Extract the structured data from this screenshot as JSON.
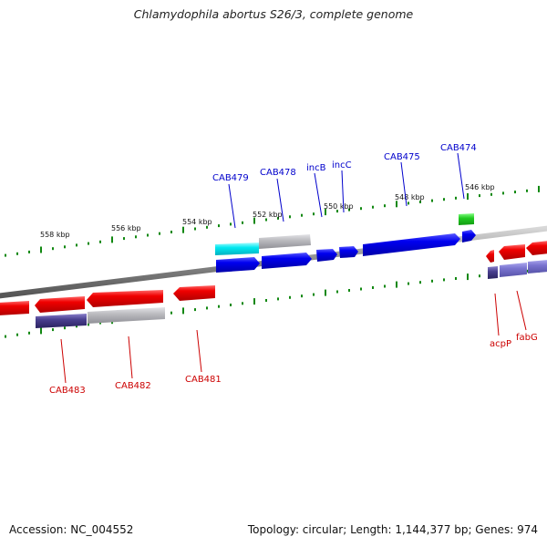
{
  "title": "Chlamydophila abortus S26/3, complete genome",
  "footer": {
    "accession": "Accession: NC_004552",
    "summary": "Topology: circular; Length: 1,144,377 bp; Genes: 974"
  },
  "colors": {
    "forward_gene": "#0000ee",
    "reverse_gene": "#ee0000",
    "backbone": "#888888",
    "tick": "#118811",
    "forward_label": "#0000cc",
    "reverse_label": "#cc0000",
    "cyan_feature": "#00e0e8",
    "gray_feature": "#b4b4b8",
    "purple_feature": "#4a4090",
    "green_feature": "#22cc22"
  },
  "kbp_labels": [
    {
      "id": "k558",
      "text": "558 kbp"
    },
    {
      "id": "k556",
      "text": "556 kbp"
    },
    {
      "id": "k554",
      "text": "554 kbp"
    },
    {
      "id": "k552",
      "text": "552 kbp"
    },
    {
      "id": "k550",
      "text": "550 kbp"
    },
    {
      "id": "k548",
      "text": "548 kbp"
    },
    {
      "id": "k546",
      "text": "546 kbp"
    }
  ],
  "forward_genes": [
    {
      "id": "fwd-CAB479",
      "label": "CAB479"
    },
    {
      "id": "fwd-CAB478",
      "label": "CAB478"
    },
    {
      "id": "fwd-incB",
      "label": "incB"
    },
    {
      "id": "fwd-incC",
      "label": "incC"
    },
    {
      "id": "fwd-CAB475",
      "label": "CAB475"
    },
    {
      "id": "fwd-CAB474",
      "label": "CAB474"
    }
  ],
  "reverse_genes": [
    {
      "id": "rev-CAB483",
      "label": "CAB483"
    },
    {
      "id": "rev-CAB482",
      "label": "CAB482"
    },
    {
      "id": "rev-CAB481",
      "label": "CAB481"
    },
    {
      "id": "rev-acpP",
      "label": "acpP"
    },
    {
      "id": "rev-fabG",
      "label": "fabG"
    }
  ]
}
